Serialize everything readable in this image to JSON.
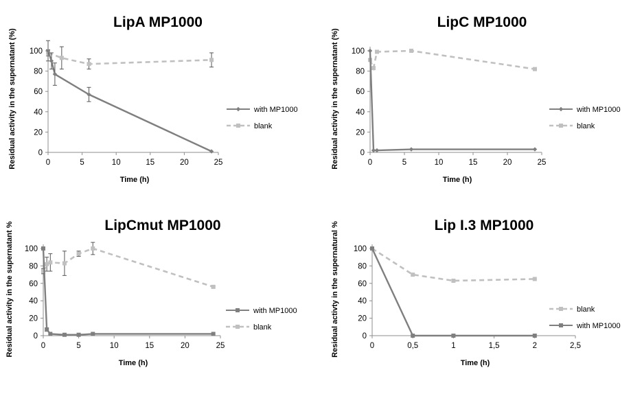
{
  "colors": {
    "with_series": "#7f7f7f",
    "blank_series": "#c0c0c0",
    "axis": "#8c8c8c",
    "errorbar": "#555555"
  },
  "chart_data": [
    {
      "type": "line",
      "title": "LipA MP1000",
      "xlabel": "Time (h)",
      "ylabel": "Residual activity in the supernatant (%)",
      "xlim": [
        0,
        25
      ],
      "ylim": [
        0,
        100
      ],
      "xticks": [
        0,
        5,
        10,
        15,
        20,
        25
      ],
      "xtick_labels": [
        "0",
        "5",
        "10",
        "15",
        "20",
        "25"
      ],
      "yticks": [
        0,
        20,
        40,
        60,
        80,
        100
      ],
      "ytick_labels": [
        "0",
        "20",
        "40",
        "60",
        "80",
        "100"
      ],
      "legend_position": "right",
      "legend_order": [
        "with MP1000",
        "blank"
      ],
      "series": [
        {
          "name": "with MP1000",
          "style": "solid",
          "marker": "diamond",
          "x": [
            0,
            0.5,
            1,
            6,
            24
          ],
          "y": [
            100,
            90,
            77,
            57,
            1
          ],
          "err": [
            10,
            8,
            11,
            7,
            0
          ]
        },
        {
          "name": "blank",
          "style": "dashed",
          "marker": "square",
          "x": [
            0,
            2,
            6,
            24
          ],
          "y": [
            98,
            93,
            87,
            91
          ],
          "err": [
            3,
            11,
            5,
            7
          ]
        }
      ]
    },
    {
      "type": "line",
      "title": "LipC MP1000",
      "xlabel": "Time (h)",
      "ylabel": "Residual activity in the supernatant (%)",
      "xlim": [
        0,
        25
      ],
      "ylim": [
        0,
        100
      ],
      "xticks": [
        0,
        5,
        10,
        15,
        20,
        25
      ],
      "xtick_labels": [
        "0",
        "5",
        "10",
        "15",
        "20",
        "25"
      ],
      "yticks": [
        0,
        20,
        40,
        60,
        80,
        100
      ],
      "ytick_labels": [
        "0",
        "20",
        "40",
        "60",
        "80",
        "100"
      ],
      "legend_position": "right",
      "legend_order": [
        "with MP1000",
        "blank"
      ],
      "series": [
        {
          "name": "with MP1000",
          "style": "solid",
          "marker": "diamond",
          "x": [
            0,
            0.5,
            1,
            6,
            24
          ],
          "y": [
            100,
            2,
            2,
            3,
            3
          ],
          "err": [
            0,
            0,
            0,
            0,
            0
          ]
        },
        {
          "name": "blank",
          "style": "dashed",
          "marker": "square",
          "x": [
            0,
            0.5,
            1,
            6,
            24
          ],
          "y": [
            91,
            83,
            99,
            100,
            82
          ],
          "err": [
            0,
            0,
            0,
            0,
            0
          ]
        }
      ]
    },
    {
      "type": "line",
      "title": "LipCmut MP1000",
      "xlabel": "Time (h)",
      "ylabel": "Residual activity in the supernatant %",
      "xlim": [
        0,
        25
      ],
      "ylim": [
        0,
        100
      ],
      "xticks": [
        0,
        5,
        10,
        15,
        20,
        25
      ],
      "xtick_labels": [
        "0",
        "5",
        "10",
        "15",
        "20",
        "25"
      ],
      "yticks": [
        0,
        20,
        40,
        60,
        80,
        100
      ],
      "ytick_labels": [
        "0",
        "20",
        "40",
        "60",
        "80",
        "100"
      ],
      "legend_position": "right",
      "legend_order": [
        "with MP1000",
        "blank"
      ],
      "series": [
        {
          "name": "with MP1000",
          "style": "solid",
          "marker": "square",
          "x": [
            0,
            0.5,
            1,
            3,
            5,
            7,
            24
          ],
          "y": [
            100,
            7,
            2,
            1,
            1,
            2,
            2
          ],
          "err": [
            0,
            2,
            0,
            0,
            0,
            0,
            0
          ]
        },
        {
          "name": "blank",
          "style": "dashed",
          "marker": "square",
          "x": [
            0,
            0.5,
            1,
            3,
            5,
            7,
            24
          ],
          "y": [
            74,
            82,
            84,
            83,
            94,
            100,
            56
          ],
          "err": [
            3,
            8,
            10,
            14,
            3,
            7,
            1
          ]
        }
      ]
    },
    {
      "type": "line",
      "title": "Lip I.3 MP1000",
      "xlabel": "Time (h)",
      "ylabel": "Residual activty in the supernatural %",
      "xlim": [
        0,
        2.5
      ],
      "ylim": [
        0,
        100
      ],
      "xticks": [
        0,
        0.5,
        1,
        1.5,
        2,
        2.5
      ],
      "xtick_labels": [
        "0",
        "0,5",
        "1",
        "1,5",
        "2",
        "2,5"
      ],
      "yticks": [
        0,
        20,
        40,
        60,
        80,
        100
      ],
      "ytick_labels": [
        "0",
        "20",
        "40",
        "60",
        "80",
        "100"
      ],
      "legend_position": "right",
      "legend_order": [
        "blank",
        "with MP1000"
      ],
      "series": [
        {
          "name": "with MP1000",
          "style": "solid",
          "marker": "square",
          "x": [
            0,
            0.5,
            1,
            2
          ],
          "y": [
            100,
            0,
            0,
            0
          ],
          "err": [
            0,
            0,
            0,
            0
          ]
        },
        {
          "name": "blank",
          "style": "dashed",
          "marker": "square",
          "x": [
            0,
            0.5,
            1,
            2
          ],
          "y": [
            100,
            70,
            63,
            65
          ],
          "err": [
            0,
            0,
            0,
            0
          ]
        }
      ]
    }
  ]
}
